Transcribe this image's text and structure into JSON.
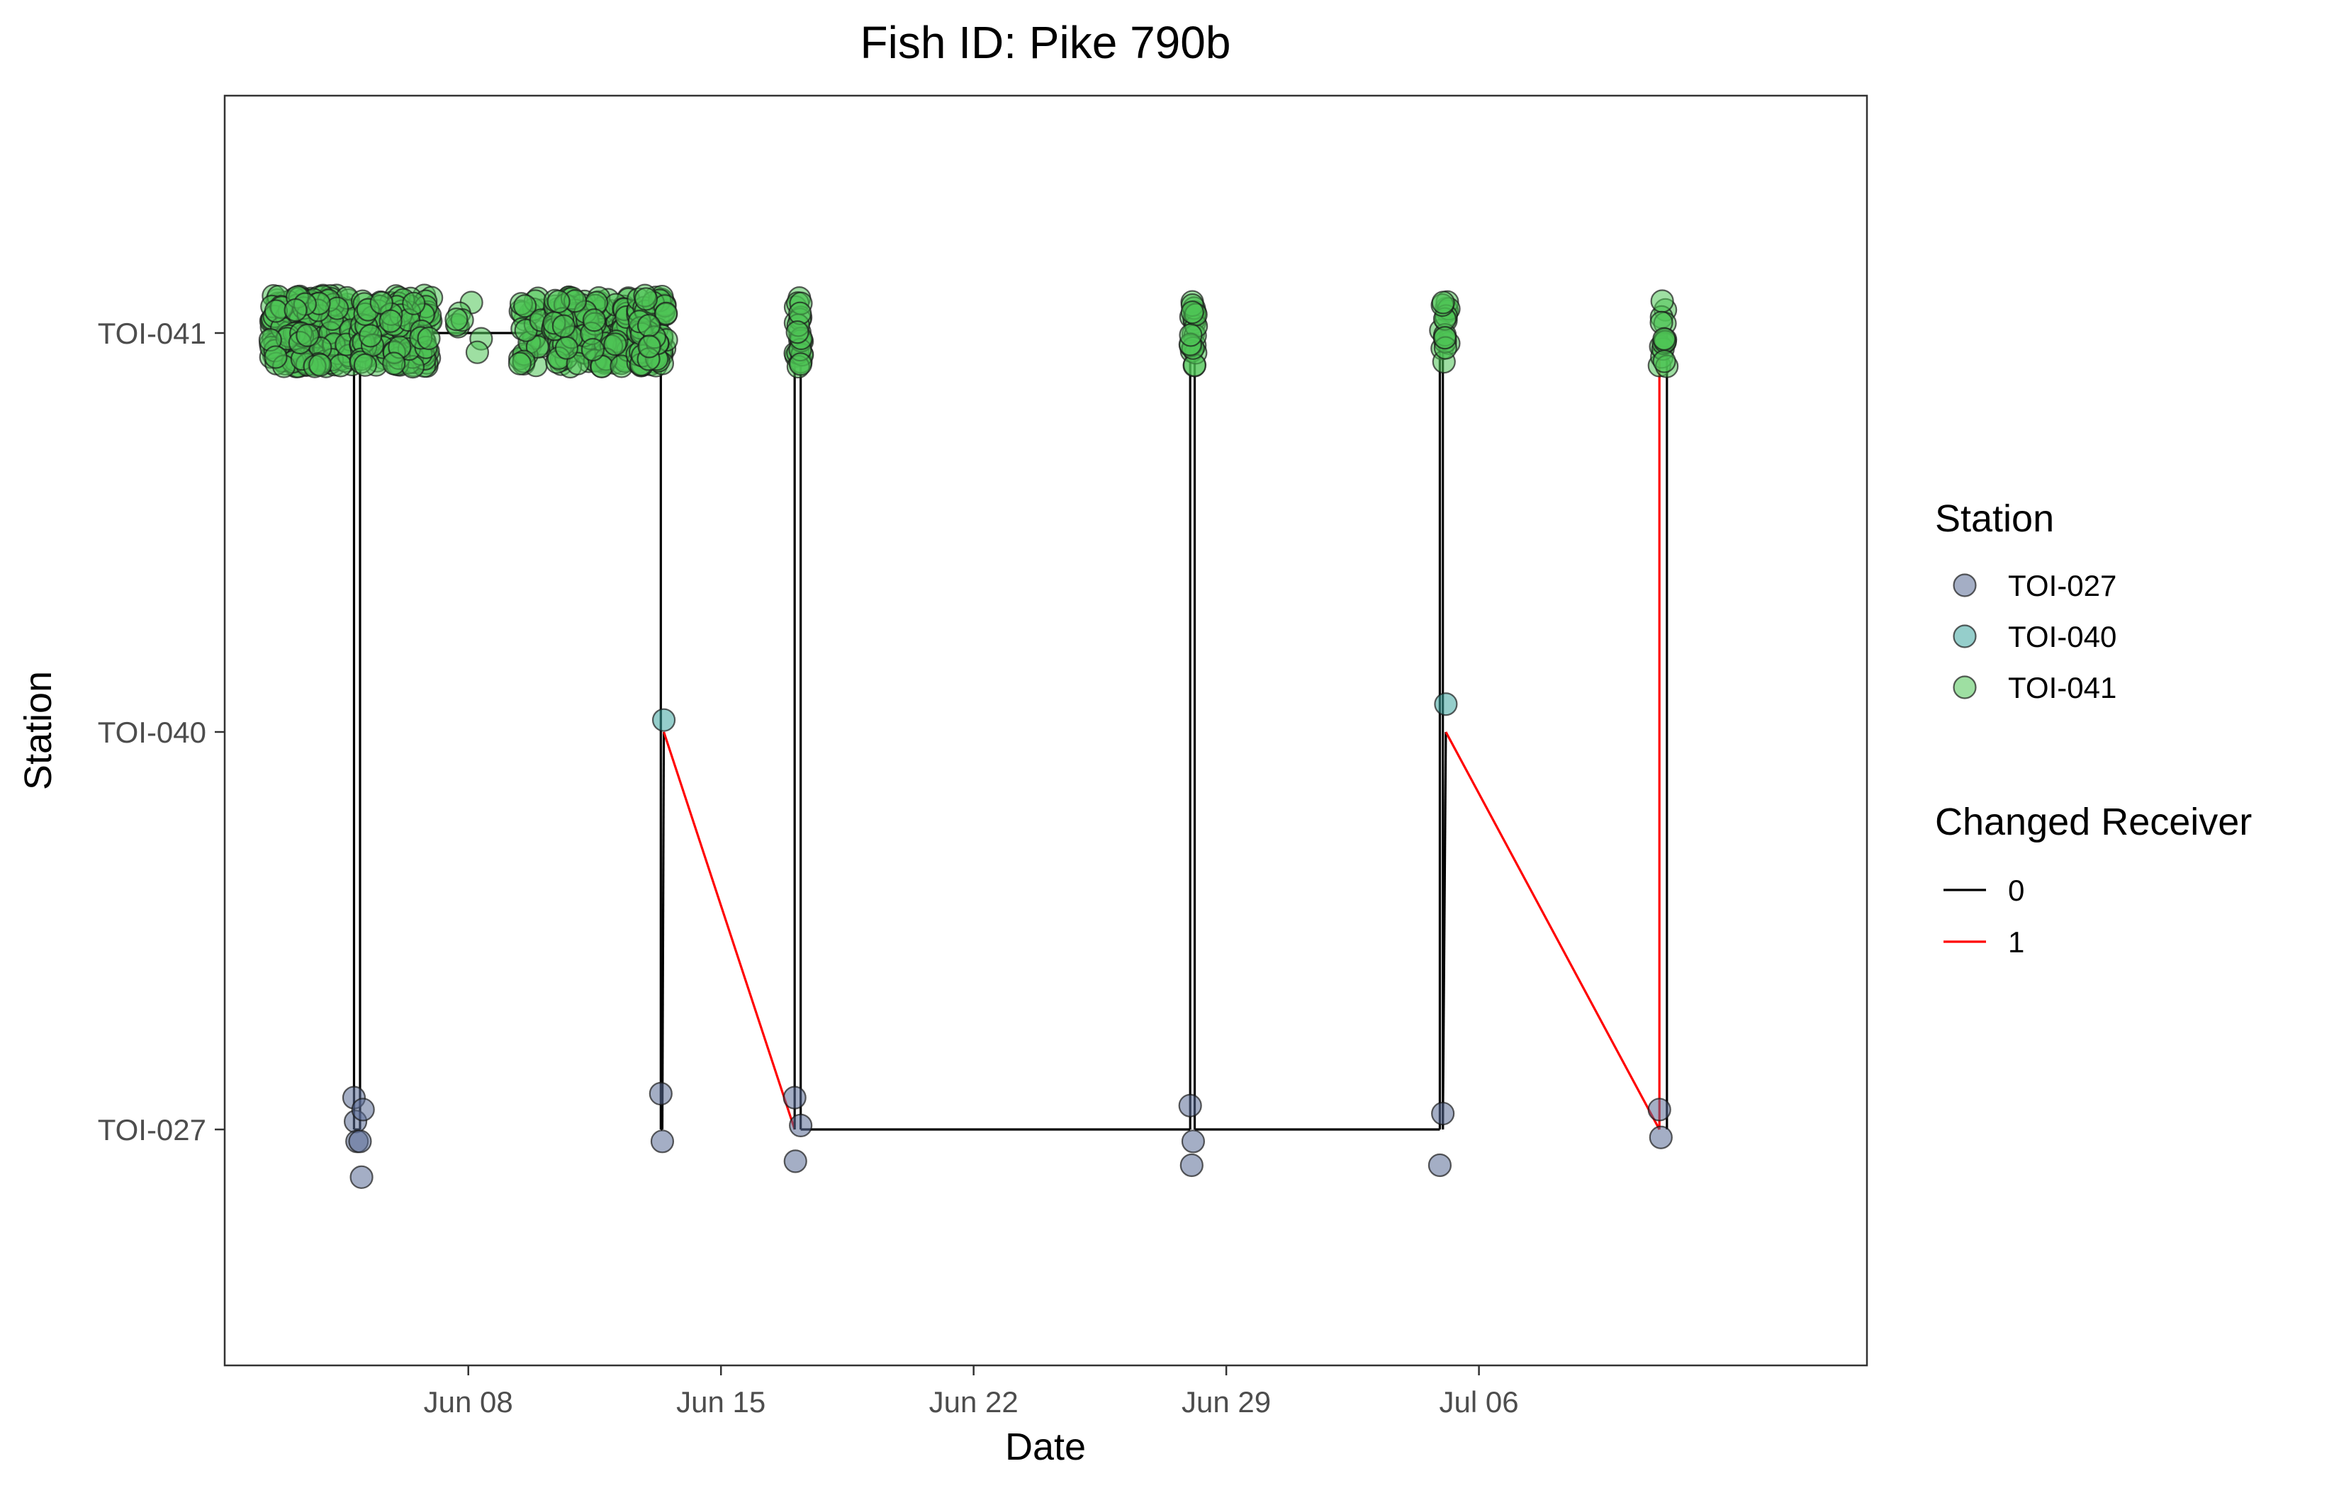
{
  "chart_data": {
    "type": "scatter",
    "title": "Fish ID: Pike 790b",
    "xlabel": "Date",
    "ylabel": "Station",
    "x_axis": {
      "type": "date",
      "range": [
        "2025-06-01T06:00",
        "2025-07-16T18:00"
      ],
      "ticks": [
        {
          "value": "2025-06-08",
          "label": "Jun 08"
        },
        {
          "value": "2025-06-15",
          "label": "Jun 15"
        },
        {
          "value": "2025-06-22",
          "label": "Jun 22"
        },
        {
          "value": "2025-06-29",
          "label": "Jun 29"
        },
        {
          "value": "2025-07-06",
          "label": "Jul 06"
        }
      ]
    },
    "y_axis": {
      "type": "categorical",
      "categories": [
        "TOI-027",
        "TOI-040",
        "TOI-041"
      ]
    },
    "grid": false,
    "legend_position": "right",
    "point_legend": {
      "title": "Station",
      "entries": [
        {
          "label": "TOI-027",
          "color": "#5a6b96"
        },
        {
          "label": "TOI-040",
          "color": "#3ea6a0"
        },
        {
          "label": "TOI-041",
          "color": "#4fc555"
        }
      ]
    },
    "line_legend": {
      "title": "Changed Receiver",
      "entries": [
        {
          "label": "0",
          "color": "#000000"
        },
        {
          "label": "1",
          "color": "#ff0000"
        }
      ]
    },
    "detections": [
      {
        "start": "2025-06-02T12:00",
        "end": "2025-06-04T20:00",
        "station": "TOI-041",
        "count": 260
      },
      {
        "start": "2025-06-05T00:00",
        "end": "2025-06-07T00:00",
        "station": "TOI-041",
        "count": 150
      },
      {
        "start": "2025-06-07T12:00",
        "end": "2025-06-08T09:00",
        "station": "TOI-041",
        "count": 8
      },
      {
        "start": "2025-06-09T10:00",
        "end": "2025-06-10T02:00",
        "station": "TOI-041",
        "count": 30
      },
      {
        "start": "2025-06-10T08:00",
        "end": "2025-06-12T12:00",
        "station": "TOI-041",
        "count": 150
      },
      {
        "start": "2025-06-12T16:00",
        "end": "2025-06-13T12:00",
        "station": "TOI-041",
        "count": 70
      },
      {
        "start": "2025-06-17T01:00",
        "end": "2025-06-17T06:00",
        "station": "TOI-041",
        "count": 25
      },
      {
        "start": "2025-06-28T00:00",
        "end": "2025-06-28T04:00",
        "station": "TOI-041",
        "count": 22
      },
      {
        "start": "2025-07-04T22:00",
        "end": "2025-07-05T04:00",
        "station": "TOI-041",
        "count": 18
      },
      {
        "start": "2025-07-11T00:00",
        "end": "2025-07-11T05:00",
        "station": "TOI-041",
        "count": 16
      }
    ],
    "extra_points": [
      {
        "x": "2025-06-04T20:00",
        "station": "TOI-027",
        "jitter": 0.08
      },
      {
        "x": "2025-06-04T21:00",
        "station": "TOI-027",
        "jitter": 0.02
      },
      {
        "x": "2025-06-04T22:00",
        "station": "TOI-027",
        "jitter": -0.03
      },
      {
        "x": "2025-06-05T00:00",
        "station": "TOI-027",
        "jitter": -0.03
      },
      {
        "x": "2025-06-05T02:00",
        "station": "TOI-027",
        "jitter": 0.05
      },
      {
        "x": "2025-06-05T01:00",
        "station": "TOI-027",
        "jitter": -0.12
      },
      {
        "x": "2025-06-13T08:00",
        "station": "TOI-027",
        "jitter": 0.09
      },
      {
        "x": "2025-06-13T09:00",
        "station": "TOI-027",
        "jitter": -0.03
      },
      {
        "x": "2025-06-13T10:00",
        "station": "TOI-040",
        "jitter": 0.03
      },
      {
        "x": "2025-06-17T01:00",
        "station": "TOI-027",
        "jitter": 0.08
      },
      {
        "x": "2025-06-17T01:30",
        "station": "TOI-027",
        "jitter": -0.08
      },
      {
        "x": "2025-06-17T05:00",
        "station": "TOI-027",
        "jitter": 0.01
      },
      {
        "x": "2025-06-28T00:00",
        "station": "TOI-027",
        "jitter": 0.06
      },
      {
        "x": "2025-06-28T01:00",
        "station": "TOI-027",
        "jitter": -0.09
      },
      {
        "x": "2025-06-28T02:00",
        "station": "TOI-027",
        "jitter": -0.03
      },
      {
        "x": "2025-07-04T22:00",
        "station": "TOI-027",
        "jitter": -0.09
      },
      {
        "x": "2025-07-05T00:00",
        "station": "TOI-027",
        "jitter": 0.04
      },
      {
        "x": "2025-07-05T02:00",
        "station": "TOI-040",
        "jitter": 0.07
      },
      {
        "x": "2025-07-11T00:00",
        "station": "TOI-027",
        "jitter": 0.05
      },
      {
        "x": "2025-07-11T01:00",
        "station": "TOI-027",
        "jitter": -0.02
      }
    ],
    "path": [
      {
        "x": "2025-06-02T12:00",
        "station": "TOI-041"
      },
      {
        "x": "2025-06-04T20:00",
        "station": "TOI-041"
      },
      {
        "x": "2025-06-04T20:00",
        "station": "TOI-027"
      },
      {
        "x": "2025-06-05T00:00",
        "station": "TOI-027"
      },
      {
        "x": "2025-06-05T00:00",
        "station": "TOI-041"
      },
      {
        "x": "2025-06-13T08:00",
        "station": "TOI-041"
      },
      {
        "x": "2025-06-13T08:00",
        "station": "TOI-027"
      },
      {
        "x": "2025-06-13T09:00",
        "station": "TOI-027"
      },
      {
        "x": "2025-06-13T10:00",
        "station": "TOI-040"
      },
      {
        "x": "2025-06-17T01:00",
        "station": "TOI-027"
      },
      {
        "x": "2025-06-17T01:00",
        "station": "TOI-041"
      },
      {
        "x": "2025-06-17T05:00",
        "station": "TOI-041"
      },
      {
        "x": "2025-06-17T05:00",
        "station": "TOI-027"
      },
      {
        "x": "2025-06-28T00:00",
        "station": "TOI-027"
      },
      {
        "x": "2025-06-28T00:00",
        "station": "TOI-041"
      },
      {
        "x": "2025-06-28T03:00",
        "station": "TOI-041"
      },
      {
        "x": "2025-06-28T03:00",
        "station": "TOI-027"
      },
      {
        "x": "2025-07-04T22:00",
        "station": "TOI-027"
      },
      {
        "x": "2025-07-04T22:00",
        "station": "TOI-041"
      },
      {
        "x": "2025-07-05T00:00",
        "station": "TOI-041"
      },
      {
        "x": "2025-07-05T00:00",
        "station": "TOI-027"
      },
      {
        "x": "2025-07-05T02:00",
        "station": "TOI-040"
      },
      {
        "x": "2025-07-11T00:00",
        "station": "TOI-027"
      },
      {
        "x": "2025-07-11T00:00",
        "station": "TOI-041"
      },
      {
        "x": "2025-07-11T05:00",
        "station": "TOI-041"
      },
      {
        "x": "2025-07-11T05:00",
        "station": "TOI-027"
      }
    ],
    "changed_receiver_segments": [
      {
        "from": "2025-06-13T10:00",
        "to": "2025-06-17T01:00"
      },
      {
        "from": "2025-06-17T05:00",
        "to": "2025-07-04T22:00"
      },
      {
        "from": "2025-07-05T02:00",
        "to": "2025-07-11T00:00"
      },
      {
        "from": "2025-07-11T00:00",
        "to": "2025-07-11T00:00"
      }
    ]
  }
}
